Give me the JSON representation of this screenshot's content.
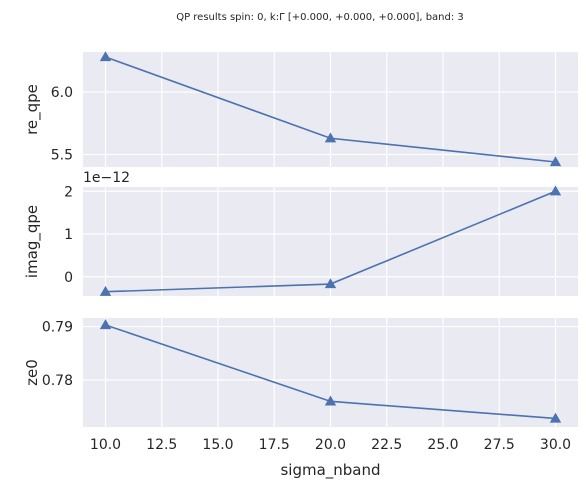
{
  "suptitle": "QP results spin: 0, k:Γ [+0.000, +0.000, +0.000], band: 3",
  "colors": {
    "panel_bg": "#eaeaf2",
    "grid": "#ffffff",
    "line": "#4c72b0",
    "text": "#262626"
  },
  "chart_data": [
    {
      "type": "line",
      "title": "",
      "xlabel": "",
      "ylabel": "re_qpe",
      "x": [
        10.0,
        20.0,
        30.0
      ],
      "series": [
        {
          "values": [
            6.28,
            5.63,
            5.44
          ],
          "marker": "triangle"
        }
      ],
      "xlim": [
        9.0,
        31.0
      ],
      "ylim": [
        5.4,
        6.32
      ],
      "yticks": [
        5.5,
        6.0
      ],
      "ytick_labels": [
        "5.5",
        "6.0"
      ],
      "xticks": [
        10.0,
        12.5,
        15.0,
        17.5,
        20.0,
        22.5,
        25.0,
        27.5,
        30.0
      ],
      "xtick_labels": [],
      "grid": true,
      "offset_text": ""
    },
    {
      "type": "line",
      "title": "",
      "xlabel": "",
      "ylabel": "imag_qpe",
      "x": [
        10.0,
        20.0,
        30.0
      ],
      "series": [
        {
          "values": [
            -0.35,
            -0.17,
            2.0
          ],
          "marker": "triangle"
        }
      ],
      "xlim": [
        9.0,
        31.0
      ],
      "ylim": [
        -0.45,
        2.1
      ],
      "yticks": [
        0,
        1,
        2
      ],
      "ytick_labels": [
        "0",
        "1",
        "2"
      ],
      "xticks": [
        10.0,
        12.5,
        15.0,
        17.5,
        20.0,
        22.5,
        25.0,
        27.5,
        30.0
      ],
      "xtick_labels": [],
      "grid": true,
      "offset_text": "1e−12"
    },
    {
      "type": "line",
      "title": "",
      "xlabel": "sigma_nband",
      "ylabel": "ze0",
      "x": [
        10.0,
        20.0,
        30.0
      ],
      "series": [
        {
          "values": [
            0.7903,
            0.776,
            0.7728
          ],
          "marker": "triangle"
        }
      ],
      "xlim": [
        9.0,
        31.0
      ],
      "ylim": [
        0.7712,
        0.7916
      ],
      "yticks": [
        0.78,
        0.79
      ],
      "ytick_labels": [
        "0.78",
        "0.79"
      ],
      "xticks": [
        10.0,
        12.5,
        15.0,
        17.5,
        20.0,
        22.5,
        25.0,
        27.5,
        30.0
      ],
      "xtick_labels": [
        "10.0",
        "12.5",
        "15.0",
        "17.5",
        "20.0",
        "22.5",
        "25.0",
        "27.5",
        "30.0"
      ],
      "grid": true,
      "offset_text": ""
    }
  ]
}
